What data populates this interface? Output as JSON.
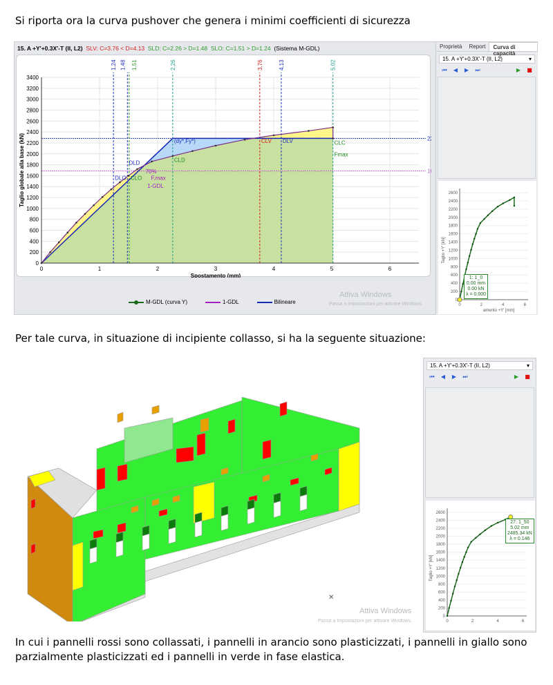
{
  "paragraphs": {
    "intro": "Si riporta ora la curva pushover che genera i minimi coefficienti di sicurezza",
    "situation": "Per tale curva, in situazione di incipiente collasso, si ha la seguente situazione:",
    "legend_text": "In cui i pannelli rossi sono collassati, i pannelli in arancio sono plasticizzati, i pannelli in giallo sono parzialmente plasticizzati ed i pannelli in verde in fase elastica."
  },
  "chart_header": {
    "case": "15. A +Y'+0.3X'-T (II, L2)",
    "slv": "SLV: C=3.76 < D=4.13",
    "sld": "SLD: C=2.26 > D=1.48",
    "slo": "SLO: C=1.51 > D=1.24",
    "system": "(Sistema M-GDL)"
  },
  "colors": {
    "slv": "#d62020",
    "sld": "#2d9b2d",
    "slo": "#2d9b2d",
    "curve": "#7a2e8c",
    "bilinear": "#1428b4",
    "green_fill": "#c8e0a0",
    "yellow_fill": "#fff58a",
    "blue_fill": "#b8d8f8",
    "collapsed": "#ff0000",
    "plastic": "#e8a000",
    "partial": "#ffff00",
    "elastic": "#33ee33"
  },
  "right_panel": {
    "tabs": [
      "Proprietà",
      "Report",
      "Curva di capacità"
    ],
    "active_tab": "Curva di capacità",
    "case_select": "15. A +Y'+0.3X'-T (II, L2)",
    "buttons": [
      "first-icon",
      "prev-icon",
      "next-icon",
      "last-icon",
      "play-icon",
      "stop-icon"
    ]
  },
  "mini_chart_1": {
    "ylabel": "Taglio +Y' [kN]",
    "xlabel": "amento +Y' [mm]",
    "yticks": [
      "0",
      "200",
      "400",
      "600",
      "800",
      "1000",
      "1200",
      "1400",
      "1600",
      "1800",
      "2000",
      "2200",
      "2400",
      "2600"
    ],
    "xticks": [
      "0",
      "2",
      "4",
      "6"
    ],
    "tooltip": [
      "1: 1_0",
      "0.00 mm",
      "0.00 kN",
      "λ = 0.000"
    ]
  },
  "mini_chart_2": {
    "ylabel": "Taglio +Y' [kN]",
    "yticks": [
      "0",
      "200",
      "400",
      "600",
      "800",
      "1000",
      "1200",
      "1400",
      "1600",
      "1800",
      "2000",
      "2200",
      "2400",
      "2600"
    ],
    "xticks": [
      "0",
      "2",
      "4",
      "6"
    ],
    "tooltip": [
      "27: 1_50",
      "5.02 mm",
      "2485.34 kN",
      "λ = 0.146"
    ]
  },
  "watermark": {
    "title": "Attiva Windows",
    "subtitle": "Passa a Impostazioni per attivare Windows."
  },
  "chart_data": {
    "type": "line",
    "xlabel": "Spostamento (mm)",
    "ylabel": "Taglio globale alla base (kN)",
    "xlim": [
      0,
      6.5
    ],
    "ylim": [
      0,
      3400
    ],
    "xticks": [
      0,
      1,
      2,
      3,
      4,
      5,
      6
    ],
    "yticks": [
      0,
      200,
      400,
      600,
      800,
      1000,
      1200,
      1400,
      1600,
      1800,
      2000,
      2200,
      2400,
      2600,
      2800,
      3000,
      3200,
      3400
    ],
    "grid": true,
    "legend_placement": "bottom",
    "series": [
      {
        "name": "M-GDL (curva Y)",
        "color": "#1d6b1d",
        "x": [
          0,
          0.15,
          0.3,
          0.45,
          0.6,
          0.75,
          0.9,
          1.05,
          1.2,
          1.35,
          1.5,
          1.65,
          1.9,
          2.26,
          2.6,
          3.0,
          3.5,
          4.0,
          4.6,
          5.02,
          5.02
        ],
        "y": [
          0,
          200,
          380,
          560,
          740,
          900,
          1060,
          1210,
          1350,
          1480,
          1600,
          1720,
          1860,
          1960,
          2050,
          2150,
          2260,
          2340,
          2420,
          2485,
          2280
        ]
      },
      {
        "name": "1-GDL",
        "color": "#a020c0",
        "x": [],
        "y": []
      },
      {
        "name": "Bilineare",
        "color": "#1428b4",
        "x": [
          0,
          2.26,
          5.02
        ],
        "y": [
          0,
          2282.42,
          2282.42
        ]
      }
    ],
    "vlines": [
      {
        "x": 1.24,
        "label": "1.24",
        "color": "#2030c0"
      },
      {
        "x": 1.48,
        "label": "1.48",
        "color": "#2030c0"
      },
      {
        "x": 1.51,
        "label": "1.51",
        "color": "#2d9b2d"
      },
      {
        "x": 2.26,
        "label": "2.26",
        "color": "#20a090"
      },
      {
        "x": 3.76,
        "label": "3.76",
        "color": "#d62020"
      },
      {
        "x": 4.13,
        "label": "4.13",
        "color": "#2030c0"
      },
      {
        "x": 5.02,
        "label": "5.02",
        "color": "#20a090"
      }
    ],
    "hlines": [
      {
        "y": 2282.42,
        "label": "2282.42",
        "color": "#2030c0"
      },
      {
        "y": 1685.93,
        "label": "1685.93",
        "color": "#c060d0"
      }
    ],
    "annotations": [
      {
        "text": "DLO",
        "x": 1.24,
        "y": 1520,
        "color": "#2030c0"
      },
      {
        "text": "CLO",
        "x": 1.51,
        "y": 1520,
        "color": "#1d8b1d"
      },
      {
        "text": "DLD",
        "x": 1.48,
        "y": 1800,
        "color": "#2030c0"
      },
      {
        "text": "CLD",
        "x": 2.26,
        "y": 1850,
        "color": "#1d8b1d"
      },
      {
        "text": "(dy*,Fy*)",
        "x": 2.26,
        "y": 2200,
        "color": "#2030c0"
      },
      {
        "text": "70%",
        "x": 1.65,
        "y": 1640,
        "color": "#a020c0"
      },
      {
        "text": "F,max",
        "x": 1.72,
        "y": 1520,
        "color": "#a020c0"
      },
      {
        "text": "1-GDL",
        "x": 1.68,
        "y": 1400,
        "color": "#a020c0"
      },
      {
        "text": "CLV",
        "x": 3.76,
        "y": 2200,
        "color": "#d62020"
      },
      {
        "text": "DLV",
        "x": 4.13,
        "y": 2200,
        "color": "#2030c0"
      },
      {
        "text": "CLC",
        "x": 5.02,
        "y": 2170,
        "color": "#1d8b1d"
      },
      {
        "text": "Fmax",
        "x": 5.02,
        "y": 1950,
        "color": "#1d8b1d"
      }
    ]
  }
}
